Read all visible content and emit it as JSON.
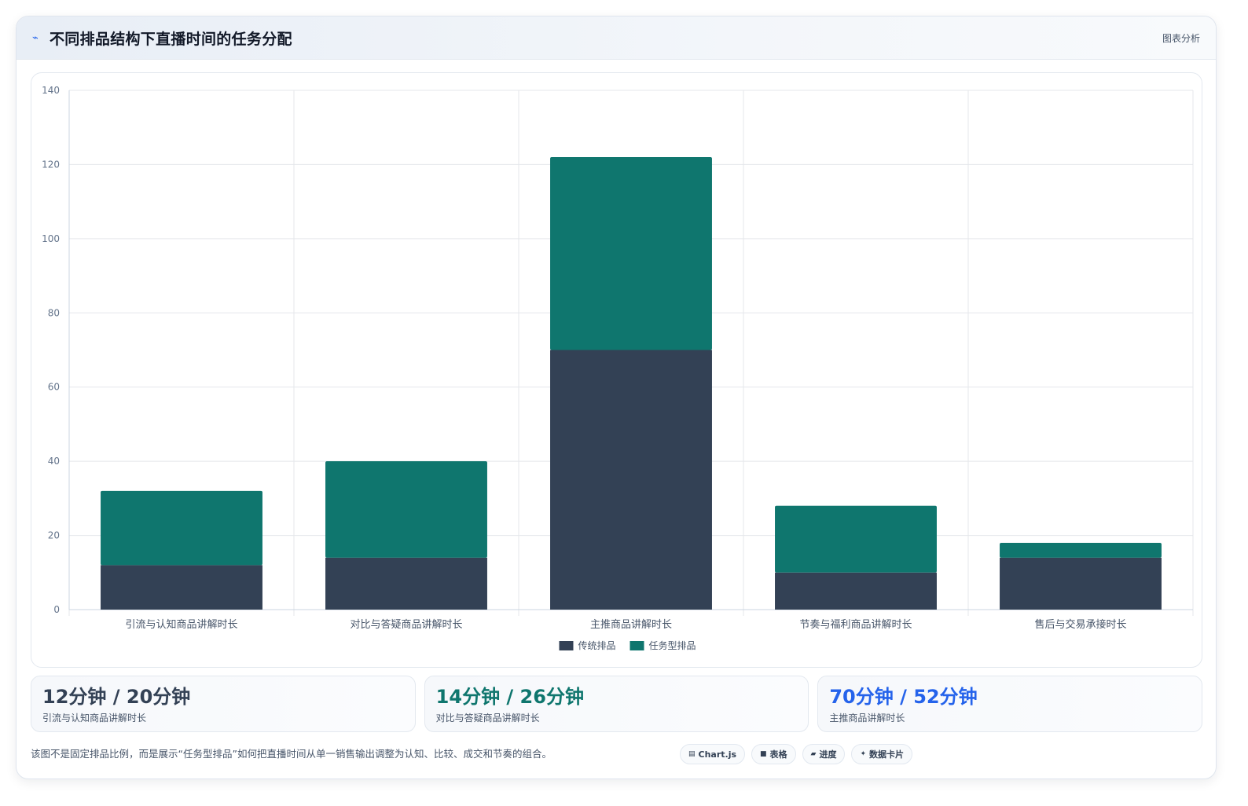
{
  "header": {
    "icon": "trend-icon",
    "title": "不同排品结构下直播时间的任务分配",
    "tag": "图表分析"
  },
  "chart_data": {
    "type": "bar",
    "stacked": true,
    "categories": [
      "引流与认知商品讲解时长",
      "对比与答疑商品讲解时长",
      "主推商品讲解时长",
      "节奏与福利商品讲解时长",
      "售后与交易承接时长"
    ],
    "series": [
      {
        "name": "传统排品",
        "values": [
          12,
          14,
          70,
          10,
          14
        ],
        "color": "#334155"
      },
      {
        "name": "任务型排品",
        "values": [
          20,
          26,
          52,
          18,
          4
        ],
        "color": "#0f766e"
      }
    ],
    "ylim": [
      0,
      140
    ],
    "yticks": [
      0,
      20,
      40,
      60,
      80,
      100,
      120,
      140
    ],
    "grid": true,
    "legend_position": "bottom"
  },
  "stats": [
    {
      "value": "12分钟 / 20分钟",
      "label": "引流与认知商品讲解时长",
      "color": "#334155"
    },
    {
      "value": "14分钟 / 26分钟",
      "label": "对比与答疑商品讲解时长",
      "color": "#0f766e"
    },
    {
      "value": "70分钟 / 52分钟",
      "label": "主推商品讲解时长",
      "color": "#2563eb"
    }
  ],
  "footer": {
    "note": "该图不是固定排品比例，而是展示“任务型排品”如何把直播时间从单一销售输出调整为认知、比较、成交和节奏的组合。",
    "chips": [
      {
        "icon": "chart-icon",
        "label": "Chart.js"
      },
      {
        "icon": "table-icon",
        "label": "表格"
      },
      {
        "icon": "progress-icon",
        "label": "进度"
      },
      {
        "icon": "sparkle-icon",
        "label": "数据卡片"
      }
    ]
  }
}
